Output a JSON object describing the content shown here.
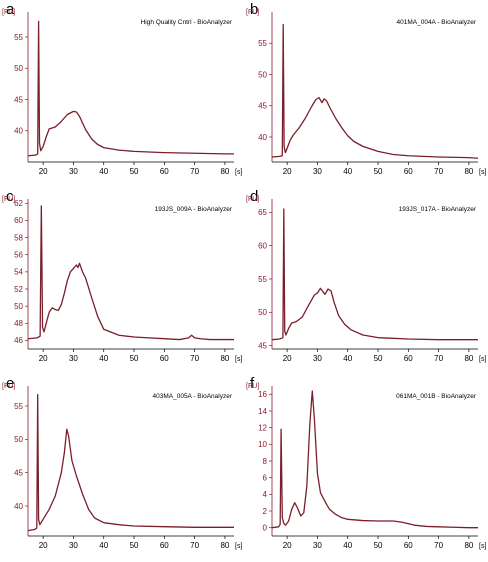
{
  "colors": {
    "axis": "#000000",
    "yaxis": "#8a1c2c",
    "trace": "#7a1f2b",
    "text": "#000000"
  },
  "chart_data": [
    {
      "type": "line",
      "panel": "a",
      "title": "High Quality Cntrl - BioAnalyzer",
      "ylabel": "[FU]",
      "xlabel": "[s]",
      "xlim": [
        15,
        83
      ],
      "ylim": [
        35,
        59
      ],
      "yticks": [
        40,
        45,
        50,
        55
      ],
      "xticks": [
        20,
        30,
        40,
        50,
        60,
        70,
        80
      ],
      "x": [
        15,
        17.5,
        18.2,
        18.5,
        18.8,
        19.2,
        20,
        21,
        22,
        24,
        26,
        28,
        30,
        31,
        32,
        34,
        36,
        38,
        40,
        45,
        50,
        55,
        60,
        70,
        80,
        83
      ],
      "y": [
        36,
        36.1,
        36.3,
        57.5,
        38,
        36.8,
        37.5,
        39,
        40.3,
        40.6,
        41.5,
        42.6,
        43.1,
        43,
        42.3,
        40.2,
        38.7,
        37.8,
        37.3,
        36.9,
        36.7,
        36.6,
        36.5,
        36.4,
        36.3,
        36.3
      ]
    },
    {
      "type": "line",
      "panel": "b",
      "title": "401MA_004A - BioAnalyzer",
      "ylabel": "[FU]",
      "xlabel": "[s]",
      "xlim": [
        15,
        83
      ],
      "ylim": [
        36,
        60
      ],
      "yticks": [
        40,
        45,
        50,
        55
      ],
      "xticks": [
        20,
        30,
        40,
        50,
        60,
        70,
        80
      ],
      "x": [
        15,
        17.5,
        18.4,
        18.7,
        19,
        19.4,
        20,
        21,
        22,
        24,
        26,
        28,
        29.5,
        30.5,
        31.5,
        32.2,
        33,
        34,
        36,
        38,
        40,
        42,
        45,
        50,
        55,
        60,
        70,
        80,
        83
      ],
      "y": [
        36.8,
        36.9,
        37,
        58,
        38.5,
        37.5,
        38.2,
        39.5,
        40.3,
        41.5,
        43,
        44.8,
        46,
        46.3,
        45.5,
        46.1,
        45.8,
        44.8,
        43,
        41.5,
        40.2,
        39.3,
        38.5,
        37.7,
        37.2,
        37,
        36.8,
        36.7,
        36.6
      ]
    },
    {
      "type": "line",
      "panel": "c",
      "title": "193JS_009A - BioAnalyzer",
      "ylabel": "[FU]",
      "xlabel": "[s]",
      "xlim": [
        15,
        83
      ],
      "ylim": [
        45,
        62.5
      ],
      "yticks": [
        46,
        48,
        50,
        52,
        54,
        56,
        58,
        60,
        62
      ],
      "xticks": [
        20,
        30,
        40,
        50,
        60,
        70,
        80
      ],
      "x": [
        15,
        18,
        19,
        19.4,
        19.8,
        20.3,
        21,
        22,
        23,
        24,
        25,
        26,
        27,
        28,
        29,
        30,
        31,
        31.5,
        32,
        33,
        34,
        36,
        38,
        40,
        45,
        50,
        55,
        60,
        65,
        68,
        69,
        70,
        72,
        75,
        80,
        83
      ],
      "y": [
        46.2,
        46.3,
        46.5,
        61.7,
        47.5,
        47,
        48,
        49.3,
        49.8,
        49.6,
        49.5,
        50.2,
        51.5,
        53,
        54,
        54.4,
        54.8,
        54.5,
        55,
        54,
        53.3,
        51,
        48.8,
        47.3,
        46.6,
        46.4,
        46.3,
        46.2,
        46.1,
        46.3,
        46.6,
        46.3,
        46.2,
        46.1,
        46.1,
        46.1
      ]
    },
    {
      "type": "line",
      "panel": "d",
      "title": "193JS_017A - BioAnalyzer",
      "ylabel": "[FU]",
      "xlabel": "[s]",
      "xlim": [
        15,
        83
      ],
      "ylim": [
        44.5,
        67
      ],
      "yticks": [
        45,
        50,
        55,
        60,
        65
      ],
      "xticks": [
        20,
        30,
        40,
        50,
        60,
        70,
        80
      ],
      "x": [
        15,
        17.5,
        18.6,
        18.9,
        19.2,
        19.6,
        20.5,
        21.5,
        23,
        25,
        27,
        29,
        30,
        31,
        31.8,
        32.5,
        33.5,
        34.5,
        35.5,
        37,
        39,
        41,
        45,
        50,
        55,
        60,
        70,
        80,
        83
      ],
      "y": [
        45.9,
        46,
        46.2,
        65.5,
        47.2,
        46.6,
        47.6,
        48.4,
        48.6,
        49.3,
        51,
        52.6,
        52.9,
        53.6,
        53.1,
        52.7,
        53.5,
        53.2,
        51.5,
        49.5,
        48.2,
        47.4,
        46.6,
        46.2,
        46.1,
        46,
        45.9,
        45.9,
        45.9
      ]
    },
    {
      "type": "line",
      "panel": "e",
      "title": "403MA_005A - BioAnalyzer",
      "ylabel": "[FU]",
      "xlabel": "[s]",
      "xlim": [
        15,
        83
      ],
      "ylim": [
        35.5,
        58
      ],
      "yticks": [
        40,
        45,
        50,
        55
      ],
      "xticks": [
        20,
        30,
        40,
        50,
        60,
        70,
        80
      ],
      "x": [
        15,
        17.3,
        17.9,
        18.2,
        18.5,
        18.9,
        20,
        22,
        24,
        26,
        27,
        27.8,
        28.4,
        29.5,
        31,
        33,
        35,
        37,
        40,
        45,
        50,
        60,
        70,
        80,
        83
      ],
      "y": [
        36.3,
        36.5,
        36.7,
        56.7,
        38,
        37.2,
        38,
        39.5,
        41.5,
        45,
        48,
        51.5,
        50.5,
        46.8,
        44.5,
        41.8,
        39.5,
        38.2,
        37.5,
        37.2,
        37,
        36.9,
        36.8,
        36.8,
        36.8
      ]
    },
    {
      "type": "line",
      "panel": "f",
      "title": "061MA_001B - BioAnalyzer",
      "ylabel": "[FU]",
      "xlabel": "[s]",
      "xlim": [
        15,
        83
      ],
      "ylim": [
        -1,
        17
      ],
      "yticks": [
        0,
        2,
        4,
        6,
        8,
        10,
        12,
        14,
        16
      ],
      "xticks": [
        20,
        30,
        40,
        50,
        60,
        70,
        80
      ],
      "x": [
        15,
        17.2,
        17.7,
        18,
        18.4,
        18.9,
        19.5,
        20.5,
        21.5,
        22.5,
        23.5,
        24.5,
        25.5,
        26.5,
        27.5,
        28.3,
        29,
        30,
        31,
        32,
        33,
        34,
        36,
        38,
        40,
        45,
        50,
        55,
        58,
        62,
        66,
        70,
        75,
        80,
        83
      ],
      "y": [
        0,
        0.1,
        0.4,
        11.8,
        1.2,
        0.5,
        0.3,
        0.8,
        2.2,
        3,
        2.3,
        1.4,
        1.8,
        5,
        12.5,
        16.4,
        13,
        6.5,
        4.2,
        3.5,
        2.8,
        2.2,
        1.6,
        1.2,
        1,
        0.85,
        0.8,
        0.8,
        0.65,
        0.3,
        0.15,
        0.1,
        0.05,
        0,
        0
      ]
    }
  ]
}
